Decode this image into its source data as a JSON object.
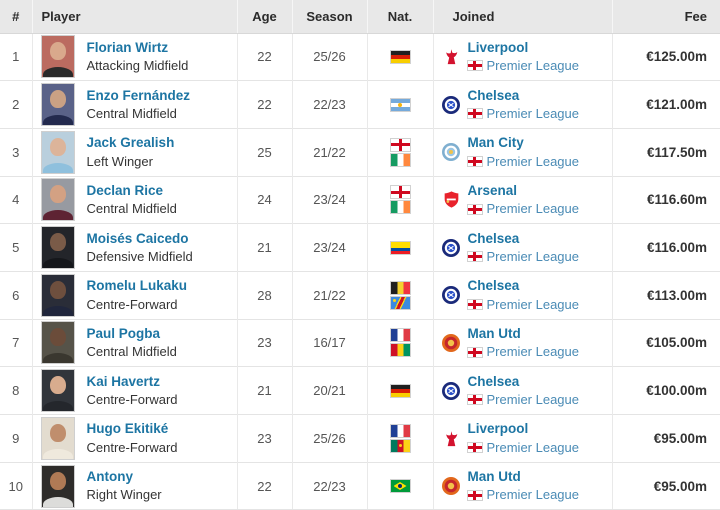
{
  "colors": {
    "link": "#1d75a3",
    "link_secondary": "#4a8bb5",
    "header_bg": "#e8e8e8",
    "border": "#e4e4e4",
    "fee_color": "#333333"
  },
  "table": {
    "columns": [
      {
        "label": "#"
      },
      {
        "label": "Player"
      },
      {
        "label": "Age"
      },
      {
        "label": "Season"
      },
      {
        "label": "Nat."
      },
      {
        "label": "Joined"
      },
      {
        "label": "Fee"
      }
    ],
    "rows": [
      {
        "rank": "1",
        "player": {
          "name": "Florian Wirtz",
          "position": "Attacking Midfield",
          "photo": {
            "bg": "#bb6b60",
            "skin": "#d9a98c",
            "shirt": "#2a2a2a"
          }
        },
        "age": "22",
        "season": "25/26",
        "nationalities": [
          "germany"
        ],
        "joined": {
          "club": "Liverpool",
          "club_icon": "liverpool",
          "league": "Premier League",
          "league_flag": "england"
        },
        "fee": "€125.00m"
      },
      {
        "rank": "2",
        "player": {
          "name": "Enzo Fernández",
          "position": "Central Midfield",
          "photo": {
            "bg": "#5a6288",
            "skin": "#caa184",
            "shirt": "#232a4e"
          }
        },
        "age": "22",
        "season": "22/23",
        "nationalities": [
          "argentina"
        ],
        "joined": {
          "club": "Chelsea",
          "club_icon": "chelsea",
          "league": "Premier League",
          "league_flag": "england"
        },
        "fee": "€121.00m"
      },
      {
        "rank": "3",
        "player": {
          "name": "Jack Grealish",
          "position": "Left Winger",
          "photo": {
            "bg": "#b9cfdd",
            "skin": "#dcb49a",
            "shirt": "#8fc0dd"
          }
        },
        "age": "25",
        "season": "21/22",
        "nationalities": [
          "england",
          "ireland"
        ],
        "joined": {
          "club": "Man City",
          "club_icon": "mancity",
          "league": "Premier League",
          "league_flag": "england"
        },
        "fee": "€117.50m"
      },
      {
        "rank": "4",
        "player": {
          "name": "Declan Rice",
          "position": "Central Midfield",
          "photo": {
            "bg": "#979aa1",
            "skin": "#d3a183",
            "shirt": "#5e2333"
          }
        },
        "age": "24",
        "season": "23/24",
        "nationalities": [
          "england",
          "ireland"
        ],
        "joined": {
          "club": "Arsenal",
          "club_icon": "arsenal",
          "league": "Premier League",
          "league_flag": "england"
        },
        "fee": "€116.60m"
      },
      {
        "rank": "5",
        "player": {
          "name": "Moisés Caicedo",
          "position": "Defensive Midfield",
          "photo": {
            "bg": "#23252a",
            "skin": "#7a5b48",
            "shirt": "#15171b"
          }
        },
        "age": "21",
        "season": "23/24",
        "nationalities": [
          "ecuador"
        ],
        "joined": {
          "club": "Chelsea",
          "club_icon": "chelsea",
          "league": "Premier League",
          "league_flag": "england"
        },
        "fee": "€116.00m"
      },
      {
        "rank": "6",
        "player": {
          "name": "Romelu Lukaku",
          "position": "Centre-Forward",
          "photo": {
            "bg": "#2a2d38",
            "skin": "#6e4f3e",
            "shirt": "#20263c"
          }
        },
        "age": "28",
        "season": "21/22",
        "nationalities": [
          "belgium",
          "dr-congo"
        ],
        "joined": {
          "club": "Chelsea",
          "club_icon": "chelsea",
          "league": "Premier League",
          "league_flag": "england"
        },
        "fee": "€113.00m"
      },
      {
        "rank": "7",
        "player": {
          "name": "Paul Pogba",
          "position": "Central Midfield",
          "photo": {
            "bg": "#565349",
            "skin": "#6b4c3a",
            "shirt": "#3a372f"
          }
        },
        "age": "23",
        "season": "16/17",
        "nationalities": [
          "france",
          "guinea"
        ],
        "joined": {
          "club": "Man Utd",
          "club_icon": "manutd",
          "league": "Premier League",
          "league_flag": "england"
        },
        "fee": "€105.00m"
      },
      {
        "rank": "8",
        "player": {
          "name": "Kai Havertz",
          "position": "Centre-Forward",
          "photo": {
            "bg": "#31353b",
            "skin": "#d8ac8e",
            "shirt": "#24272c"
          }
        },
        "age": "21",
        "season": "20/21",
        "nationalities": [
          "germany"
        ],
        "joined": {
          "club": "Chelsea",
          "club_icon": "chelsea",
          "league": "Premier League",
          "league_flag": "england"
        },
        "fee": "€100.00m"
      },
      {
        "rank": "9",
        "player": {
          "name": "Hugo Ekitiké",
          "position": "Centre-Forward",
          "photo": {
            "bg": "#e3dccf",
            "skin": "#c08e6d",
            "shirt": "#efe9dd"
          }
        },
        "age": "23",
        "season": "25/26",
        "nationalities": [
          "france",
          "cameroon"
        ],
        "joined": {
          "club": "Liverpool",
          "club_icon": "liverpool",
          "league": "Premier League",
          "league_flag": "england"
        },
        "fee": "€95.00m"
      },
      {
        "rank": "10",
        "player": {
          "name": "Antony",
          "position": "Right Winger",
          "photo": {
            "bg": "#2e2c2a",
            "skin": "#b07a55",
            "shirt": "#dcdcda"
          }
        },
        "age": "22",
        "season": "22/23",
        "nationalities": [
          "brazil"
        ],
        "joined": {
          "club": "Man Utd",
          "club_icon": "manutd",
          "league": "Premier League",
          "league_flag": "england"
        },
        "fee": "€95.00m"
      }
    ]
  }
}
